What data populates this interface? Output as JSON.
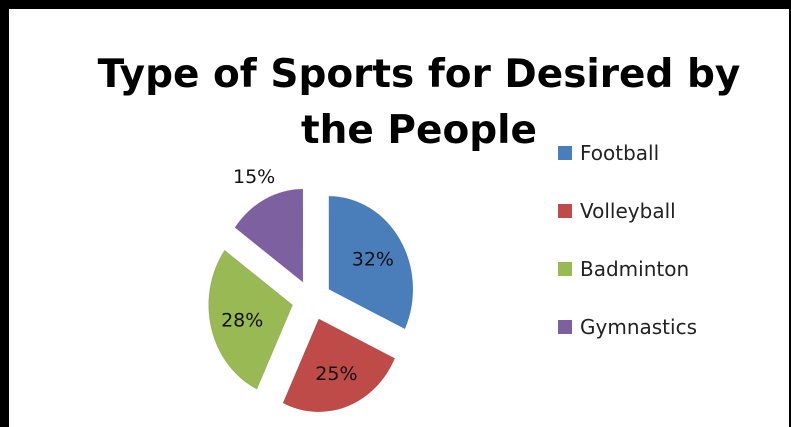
{
  "chart_data": {
    "type": "pie",
    "title": "Type of Sports for Desired by the People",
    "title_lines": [
      "Type of Sports for Desired by",
      "the People"
    ],
    "slices": [
      {
        "name": "Football",
        "value": 32,
        "label": "32%",
        "color": "#4a7ebb"
      },
      {
        "name": "Volleyball",
        "value": 25,
        "label": "25%",
        "color": "#be4b48"
      },
      {
        "name": "Badminton",
        "value": 28,
        "label": "28%",
        "color": "#98b954"
      },
      {
        "name": "Gymnastics",
        "value": 15,
        "label": "15%",
        "color": "#7d60a0"
      }
    ],
    "exploded": true,
    "legend_position": "right"
  }
}
